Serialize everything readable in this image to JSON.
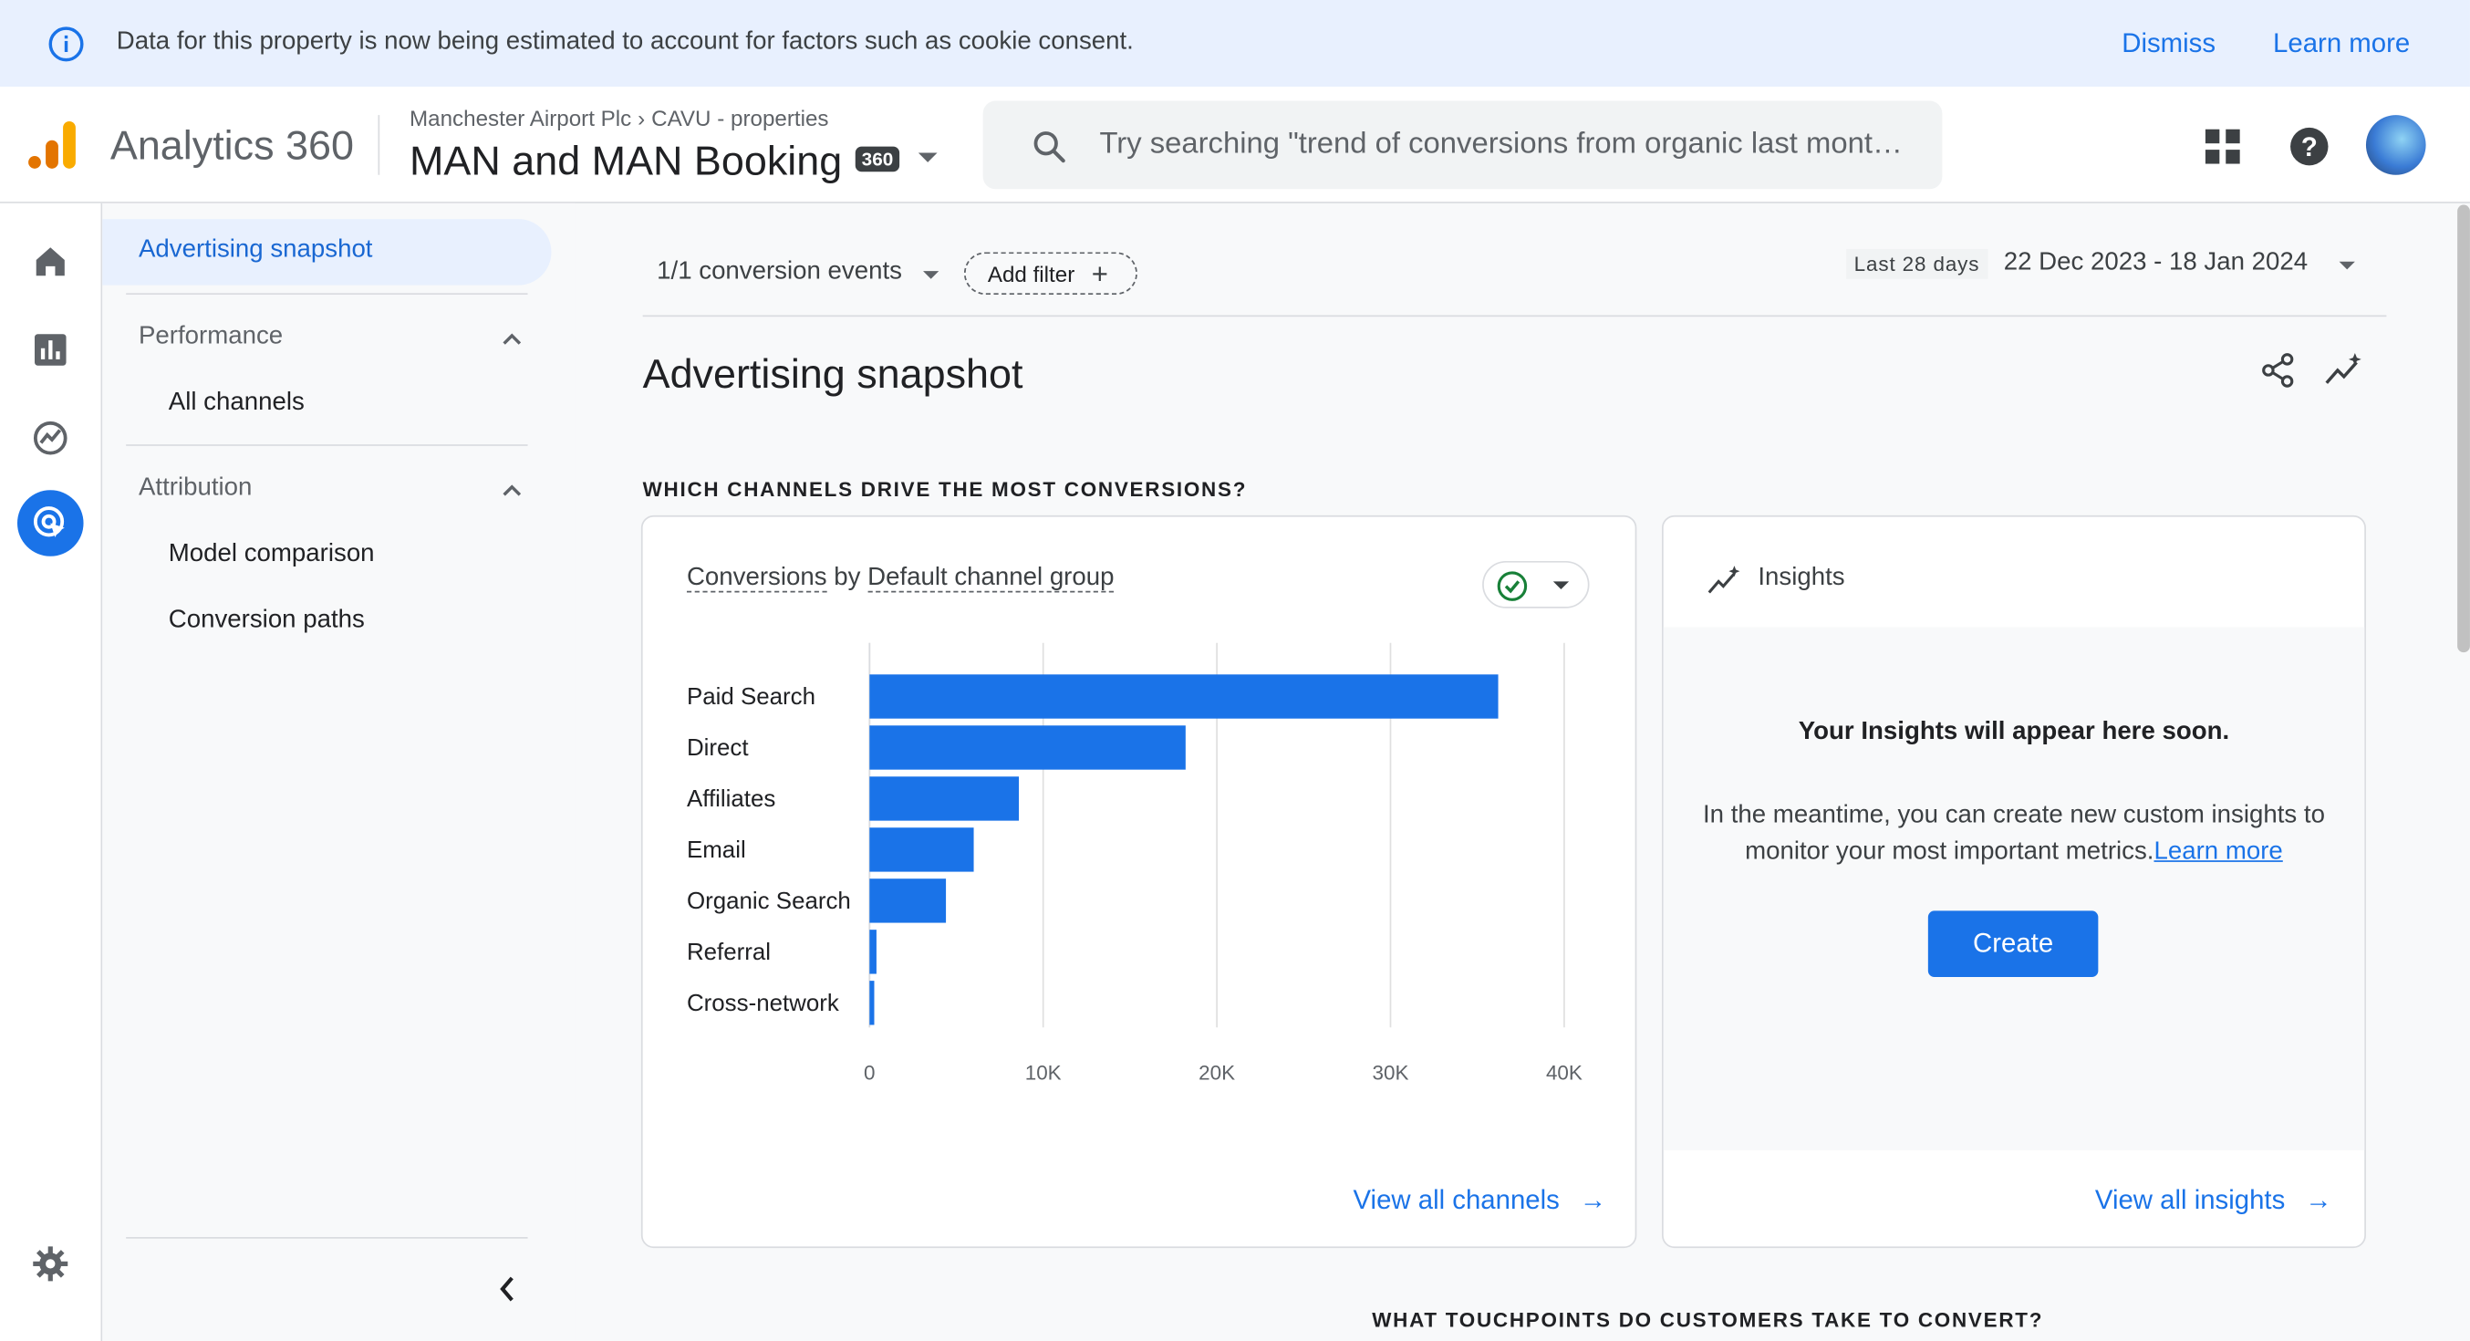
{
  "banner": {
    "message": "Data for this property is now being estimated to account for factors such as cookie consent.",
    "dismiss": "Dismiss",
    "learn_more": "Learn more"
  },
  "header": {
    "product": "Analytics 360",
    "breadcrumb_account": "Manchester Airport Plc",
    "breadcrumb_property": "CAVU - properties",
    "property_name": "MAN and MAN Booking",
    "badge": "360",
    "search_placeholder": "Try searching \"trend of conversions from organic last mont…"
  },
  "subnav": {
    "selected": "Advertising snapshot",
    "performance_header": "Performance",
    "all_channels": "All channels",
    "attribution_header": "Attribution",
    "model_comparison": "Model comparison",
    "conversion_paths": "Conversion paths"
  },
  "toolbar": {
    "conversion_events": "1/1 conversion events",
    "add_filter": "Add filter",
    "date_tag": "Last 28 days",
    "date_range": "22 Dec 2023 - 18 Jan 2024"
  },
  "page": {
    "title": "Advertising snapshot",
    "section1": "WHICH CHANNELS DRIVE THE MOST CONVERSIONS?",
    "section2": "WHAT TOUCHPOINTS DO CUSTOMERS TAKE TO CONVERT?"
  },
  "chart_card": {
    "title_metric": "Conversions",
    "title_by": " by ",
    "title_dimension": "Default channel group",
    "view_all": "View all channels"
  },
  "chart_data": {
    "type": "bar",
    "orientation": "horizontal",
    "categories": [
      "Paid Search",
      "Direct",
      "Affiliates",
      "Email",
      "Organic Search",
      "Referral",
      "Cross-network"
    ],
    "values": [
      36200,
      18200,
      8600,
      6000,
      4400,
      400,
      200
    ],
    "xlim": [
      0,
      40000
    ],
    "xticks": [
      "0",
      "10K",
      "20K",
      "30K",
      "40K"
    ],
    "xtick_values": [
      0,
      10000,
      20000,
      30000,
      40000
    ],
    "bar_color": "#1a73e8",
    "grid": true
  },
  "insights_card": {
    "title": "Insights",
    "headline": "Your Insights will appear here soon.",
    "body": "In the meantime, you can create new custom insights to monitor your most important metrics.",
    "learn_more": "Learn more",
    "create": "Create",
    "view_all": "View all insights"
  },
  "colors": {
    "accent": "#1a73e8",
    "banner_bg": "#e8f0fe",
    "logo_orange": "#f9ab00",
    "logo_dark": "#e37400"
  }
}
